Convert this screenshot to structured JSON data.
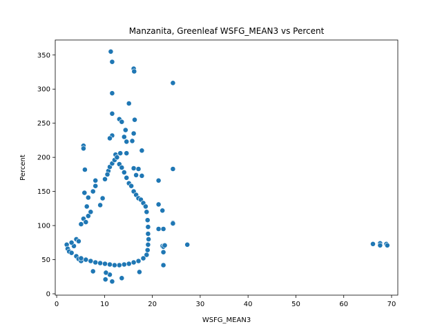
{
  "chart_data": {
    "type": "scatter",
    "title": "Manzanita, Greenleaf WSFG_MEAN3 vs Percent",
    "xlabel": "WSFG_MEAN3",
    "ylabel": "Percent",
    "xlim": [
      -0.3,
      71.3
    ],
    "ylim": [
      -2,
      372
    ],
    "xticks": [
      0,
      10,
      20,
      30,
      40,
      50,
      60,
      70
    ],
    "yticks": [
      0,
      50,
      100,
      150,
      200,
      250,
      300,
      350
    ],
    "grid": false,
    "legend": "none",
    "marker_color": "#1f77b4",
    "points": [
      [
        11.3,
        355
      ],
      [
        11.6,
        340
      ],
      [
        16.1,
        330
      ],
      [
        16.2,
        326
      ],
      [
        24.3,
        309
      ],
      [
        11.6,
        294
      ],
      [
        15.1,
        279
      ],
      [
        11.6,
        264
      ],
      [
        13.1,
        256
      ],
      [
        16.3,
        255
      ],
      [
        13.6,
        252
      ],
      [
        14.4,
        240
      ],
      [
        16.1,
        235
      ],
      [
        14.1,
        230
      ],
      [
        11.6,
        232
      ],
      [
        11.1,
        228
      ],
      [
        15.8,
        224
      ],
      [
        14.6,
        223
      ],
      [
        5.6,
        217
      ],
      [
        5.6,
        213
      ],
      [
        17.8,
        210
      ],
      [
        13.3,
        206
      ],
      [
        14.6,
        206
      ],
      [
        12.3,
        204
      ],
      [
        24.3,
        183
      ],
      [
        5.9,
        182
      ],
      [
        16.1,
        184
      ],
      [
        17.1,
        183
      ],
      [
        10.8,
        180
      ],
      [
        16.6,
        174
      ],
      [
        17.8,
        173
      ],
      [
        21.3,
        166
      ],
      [
        8.1,
        166
      ],
      [
        21.3,
        131
      ],
      [
        22.1,
        122
      ],
      [
        27.3,
        72
      ],
      [
        17.3,
        32
      ],
      [
        22.3,
        42
      ],
      [
        11.1,
        28
      ],
      [
        10.3,
        31
      ],
      [
        10.2,
        21
      ],
      [
        11.6,
        18
      ],
      [
        13.6,
        23
      ],
      [
        7.6,
        33
      ],
      [
        21.3,
        95
      ],
      [
        22.3,
        95
      ],
      [
        24.3,
        104
      ],
      [
        24.3,
        103
      ],
      [
        22.1,
        70
      ],
      [
        22.3,
        69
      ],
      [
        22.6,
        71
      ],
      [
        22.3,
        61
      ],
      [
        66.1,
        73
      ],
      [
        67.6,
        74
      ],
      [
        68.9,
        73
      ],
      [
        67.6,
        71
      ],
      [
        69.1,
        71
      ],
      [
        2.1,
        72
      ],
      [
        2.3,
        66
      ],
      [
        2.6,
        62
      ],
      [
        3.1,
        60
      ],
      [
        4.1,
        55
      ],
      [
        4.6,
        51
      ],
      [
        5.1,
        48
      ],
      [
        3.6,
        70
      ],
      [
        3.1,
        75
      ],
      [
        4.1,
        80
      ],
      [
        4.6,
        77
      ],
      [
        5.1,
        102
      ],
      [
        5.6,
        110
      ],
      [
        6.1,
        105
      ],
      [
        6.6,
        114
      ],
      [
        7.1,
        120
      ],
      [
        6.3,
        128
      ],
      [
        7.6,
        150
      ],
      [
        8.1,
        158
      ],
      [
        5.8,
        148
      ],
      [
        6.6,
        141
      ],
      [
        9.1,
        130
      ],
      [
        9.6,
        140
      ],
      [
        10.1,
        168
      ],
      [
        10.6,
        175
      ],
      [
        11.1,
        186
      ],
      [
        11.6,
        191
      ],
      [
        12.1,
        196
      ],
      [
        12.6,
        200
      ],
      [
        13.1,
        190
      ],
      [
        13.6,
        185
      ],
      [
        14.1,
        178
      ],
      [
        14.6,
        170
      ],
      [
        15.1,
        162
      ],
      [
        15.6,
        158
      ],
      [
        16.1,
        150
      ],
      [
        16.6,
        145
      ],
      [
        17.1,
        140
      ],
      [
        17.6,
        138
      ],
      [
        18.1,
        133
      ],
      [
        18.6,
        128
      ],
      [
        18.8,
        120
      ],
      [
        19.0,
        108
      ],
      [
        19.1,
        98
      ],
      [
        19.1,
        88
      ],
      [
        19.2,
        80
      ],
      [
        19.1,
        72
      ],
      [
        19.0,
        64
      ],
      [
        18.8,
        57
      ],
      [
        18.1,
        52
      ],
      [
        17.1,
        48
      ],
      [
        16.1,
        46
      ],
      [
        15.1,
        44
      ],
      [
        14.1,
        43
      ],
      [
        13.1,
        42
      ],
      [
        12.1,
        42
      ],
      [
        11.1,
        43
      ],
      [
        10.1,
        44
      ],
      [
        9.1,
        45
      ],
      [
        8.1,
        46
      ],
      [
        7.1,
        48
      ],
      [
        6.1,
        50
      ],
      [
        5.1,
        52
      ]
    ]
  }
}
